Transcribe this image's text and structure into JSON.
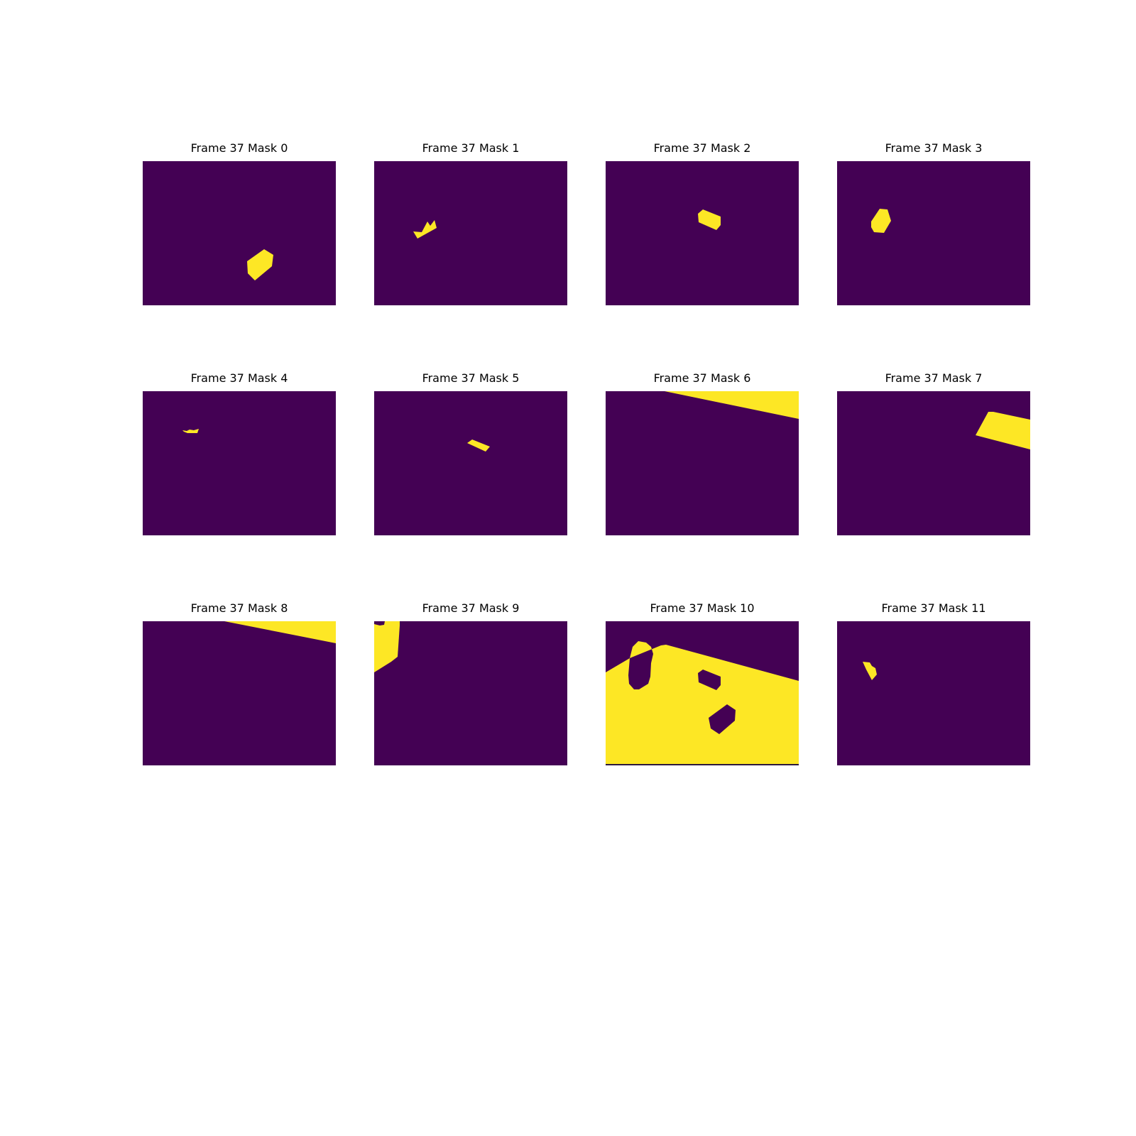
{
  "figure": {
    "colors": {
      "background": "#440154",
      "foreground": "#fde725"
    },
    "panels": [
      {
        "title": "Frame 37 Mask 0"
      },
      {
        "title": "Frame 37 Mask 1"
      },
      {
        "title": "Frame 37 Mask 2"
      },
      {
        "title": "Frame 37 Mask 3"
      },
      {
        "title": "Frame 37 Mask 4"
      },
      {
        "title": "Frame 37 Mask 5"
      },
      {
        "title": "Frame 37 Mask 6"
      },
      {
        "title": "Frame 37 Mask 7"
      },
      {
        "title": "Frame 37 Mask 8"
      },
      {
        "title": "Frame 37 Mask 9"
      },
      {
        "title": "Frame 37 Mask 10"
      },
      {
        "title": "Frame 37 Mask 11"
      }
    ]
  }
}
